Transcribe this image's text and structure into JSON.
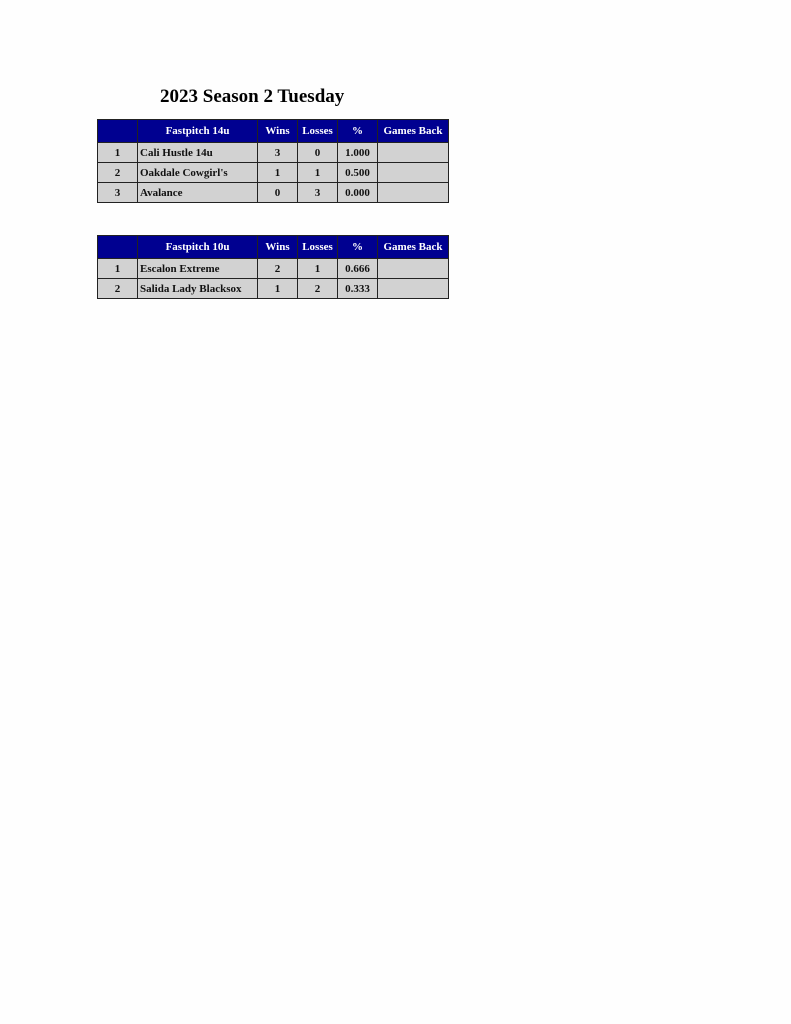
{
  "title": "2023 Season 2 Tuesday",
  "columns": [
    "Wins",
    "Losses",
    "%",
    "Games Back"
  ],
  "colors": {
    "header_bg": "#000090",
    "cell_bg": "#d2d2d2"
  },
  "tables": [
    {
      "division": "Fastpitch 14u",
      "rows": [
        {
          "rank": "1",
          "team": "Cali Hustle 14u",
          "wins": "3",
          "losses": "0",
          "pct": "1.000",
          "gb": ""
        },
        {
          "rank": "2",
          "team": "Oakdale Cowgirl's",
          "wins": "1",
          "losses": "1",
          "pct": "0.500",
          "gb": ""
        },
        {
          "rank": "3",
          "team": "Avalance",
          "wins": "0",
          "losses": "3",
          "pct": "0.000",
          "gb": ""
        }
      ]
    },
    {
      "division": "Fastpitch 10u",
      "rows": [
        {
          "rank": "1",
          "team": "Escalon Extreme",
          "wins": "2",
          "losses": "1",
          "pct": "0.666",
          "gb": ""
        },
        {
          "rank": "2",
          "team": "Salida Lady Blacksox",
          "wins": "1",
          "losses": "2",
          "pct": "0.333",
          "gb": ""
        }
      ]
    }
  ]
}
